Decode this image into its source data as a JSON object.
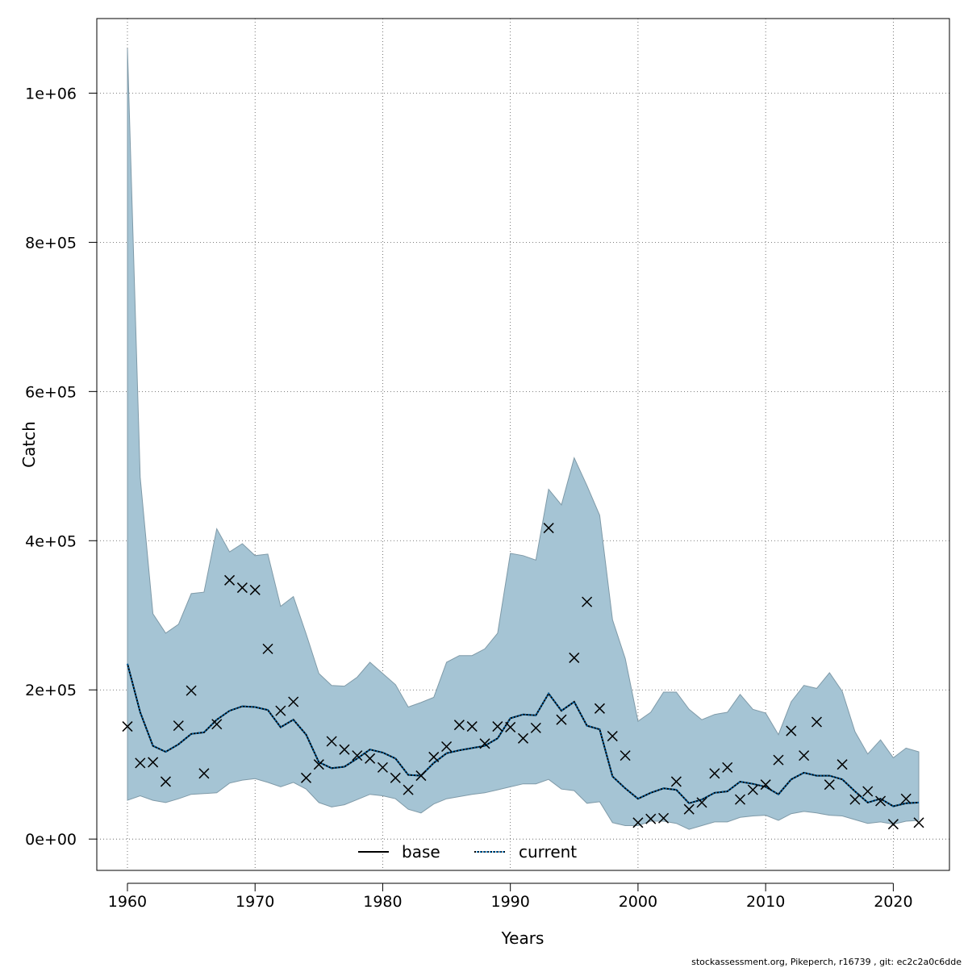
{
  "chart_data": {
    "type": "line",
    "xlabel": "Years",
    "ylabel": "Catch",
    "xlim": [
      1957.6,
      2024.4
    ],
    "ylim": [
      -42000,
      1100000
    ],
    "grid": true,
    "legend_placement": "bottom",
    "x_ticks": [
      1960,
      1970,
      1980,
      1990,
      2000,
      2010,
      2020
    ],
    "x_tick_labels": [
      "1960",
      "1970",
      "1980",
      "1990",
      "2000",
      "2010",
      "2020"
    ],
    "y_ticks": [
      0,
      200000,
      400000,
      600000,
      800000,
      1000000
    ],
    "y_tick_labels": [
      "0e+00",
      "2e+05",
      "4e+05",
      "6e+05",
      "8e+05",
      "1e+06"
    ],
    "years": [
      1960,
      1961,
      1962,
      1963,
      1964,
      1965,
      1966,
      1967,
      1968,
      1969,
      1970,
      1971,
      1972,
      1973,
      1974,
      1975,
      1976,
      1977,
      1978,
      1979,
      1980,
      1981,
      1982,
      1983,
      1984,
      1985,
      1986,
      1987,
      1988,
      1989,
      1990,
      1991,
      1992,
      1993,
      1994,
      1995,
      1996,
      1997,
      1998,
      1999,
      2000,
      2001,
      2002,
      2003,
      2004,
      2005,
      2006,
      2007,
      2008,
      2009,
      2010,
      2011,
      2012,
      2013,
      2014,
      2015,
      2016,
      2017,
      2018,
      2019,
      2020,
      2021,
      2022
    ],
    "series": [
      {
        "name": "base",
        "style": "solid",
        "color": "#000000",
        "values": [
          235000,
          170000,
          125000,
          117000,
          127000,
          141000,
          143000,
          160000,
          172000,
          178000,
          177000,
          173000,
          150000,
          160000,
          140000,
          103000,
          95000,
          97000,
          108000,
          120000,
          116000,
          108000,
          86000,
          85000,
          102000,
          115000,
          119000,
          122000,
          125000,
          135000,
          162000,
          167000,
          166000,
          195000,
          172000,
          184000,
          152000,
          147000,
          84000,
          68000,
          54000,
          62000,
          68000,
          66000,
          48000,
          53000,
          62000,
          64000,
          77000,
          74000,
          70000,
          60000,
          80000,
          89000,
          85000,
          85000,
          80000,
          64000,
          49000,
          54000,
          44000,
          48000,
          49000
        ]
      },
      {
        "name": "current",
        "style": "dotted",
        "color": "#0060a0",
        "values": [
          235000,
          170000,
          125000,
          117000,
          127000,
          141000,
          143000,
          160000,
          172000,
          178000,
          177000,
          173000,
          150000,
          160000,
          140000,
          103000,
          95000,
          97000,
          108000,
          120000,
          116000,
          108000,
          86000,
          85000,
          102000,
          115000,
          119000,
          122000,
          125000,
          135000,
          162000,
          167000,
          166000,
          195000,
          172000,
          184000,
          152000,
          147000,
          84000,
          68000,
          54000,
          62000,
          68000,
          66000,
          48000,
          53000,
          62000,
          64000,
          77000,
          74000,
          70000,
          60000,
          80000,
          89000,
          85000,
          85000,
          80000,
          64000,
          49000,
          54000,
          44000,
          48000,
          49000
        ]
      }
    ],
    "ci_band": {
      "color": "#a5c4d4",
      "upper": [
        1060000,
        485000,
        302000,
        276000,
        288000,
        329000,
        331000,
        416000,
        385000,
        396000,
        380000,
        382000,
        312000,
        325000,
        275000,
        222000,
        206000,
        205000,
        217000,
        237000,
        222000,
        207000,
        177000,
        183000,
        190000,
        237000,
        246000,
        246000,
        255000,
        276000,
        383000,
        380000,
        374000,
        469000,
        448000,
        511000,
        474000,
        434000,
        294000,
        242000,
        158000,
        170000,
        197000,
        197000,
        174000,
        160000,
        167000,
        170000,
        194000,
        174000,
        169000,
        140000,
        184000,
        206000,
        202000,
        223000,
        198000,
        144000,
        114000,
        133000,
        109000,
        122000,
        117000
      ]
    },
    "ci_lower": [
      52000,
      58000,
      52000,
      49000,
      54000,
      60000,
      61000,
      62000,
      75000,
      79000,
      81000,
      76000,
      70000,
      76000,
      67000,
      49000,
      43000,
      46000,
      53000,
      60000,
      58000,
      54000,
      40000,
      35000,
      47000,
      54000,
      57000,
      60000,
      62000,
      66000,
      70000,
      74000,
      74000,
      80000,
      67000,
      65000,
      48000,
      50000,
      22000,
      18000,
      18000,
      24000,
      24000,
      21000,
      13000,
      18000,
      23000,
      23000,
      29000,
      31000,
      32000,
      25000,
      34000,
      37000,
      35000,
      32000,
      31000,
      26000,
      21000,
      23000,
      20000,
      24000,
      25000
    ],
    "observed": {
      "marker": "x",
      "values": [
        151000,
        102000,
        103000,
        77000,
        152000,
        199000,
        88000,
        154000,
        347000,
        337000,
        334000,
        255000,
        172000,
        184000,
        82000,
        100000,
        131000,
        120000,
        112000,
        108000,
        96000,
        82000,
        66000,
        85000,
        110000,
        124000,
        153000,
        151000,
        128000,
        151000,
        150000,
        135000,
        149000,
        417000,
        160000,
        243000,
        318000,
        175000,
        138000,
        112000,
        22000,
        27000,
        28000,
        77000,
        40000,
        49000,
        88000,
        96000,
        53000,
        66000,
        73000,
        106000,
        145000,
        112000,
        157000,
        73000,
        100000,
        53000,
        64000,
        51000,
        20000,
        54000,
        22000
      ]
    },
    "legend": [
      {
        "label": "base",
        "style": "solid"
      },
      {
        "label": "current",
        "style": "dotted"
      }
    ]
  },
  "footer": {
    "caption": "stockassessment.org, Pikeperch, r16739 , git: ec2c2a0c6dde"
  }
}
